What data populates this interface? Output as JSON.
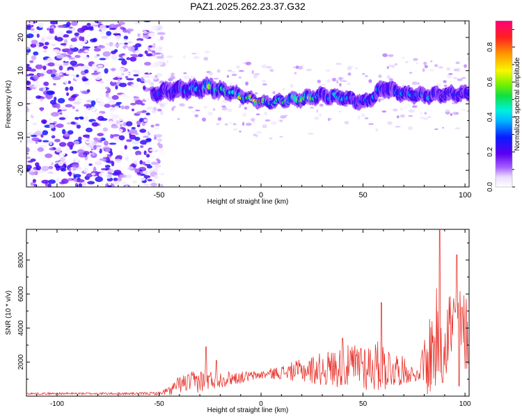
{
  "title": "PAZ1.2025.262.23.37.G32",
  "chart_data": [
    {
      "type": "heatmap",
      "xlabel": "Height of straight line (km)",
      "ylabel": "Frequency (Hz)",
      "xlim": [
        -115,
        102
      ],
      "ylim": [
        -25,
        25
      ],
      "xticks": [
        -100,
        -50,
        0,
        50,
        100
      ],
      "yticks": [
        -20,
        -10,
        0,
        10,
        20
      ],
      "colorbar": {
        "label": "Normalized spectral amplitude",
        "range": [
          0,
          0.95
        ],
        "ticks": [
          0.0,
          0.2,
          0.4,
          0.6,
          0.8
        ],
        "colormap": "rainbow (white-lavender → violet → blue → cyan → green → yellow → orange → red → magenta)"
      },
      "noise_region": {
        "x_range": [
          -115,
          -52
        ],
        "freq_range": [
          -25,
          25
        ],
        "amplitude": "low (0.0–0.15)"
      },
      "signal_ridge": {
        "x": [
          -53,
          -45,
          -35,
          -25,
          -15,
          -5,
          0,
          5,
          10,
          20,
          30,
          40,
          50,
          55,
          60,
          70,
          80,
          90,
          100
        ],
        "freq": [
          3,
          4,
          4.5,
          5,
          3.5,
          1.5,
          0.5,
          0.5,
          1,
          1.5,
          2.5,
          2,
          0.5,
          2,
          5,
          3,
          2.5,
          3,
          3
        ],
        "width_hz": [
          4,
          5,
          5,
          5,
          4,
          3,
          3,
          3,
          3,
          4,
          4,
          4,
          4,
          4,
          5,
          4,
          4,
          4,
          4
        ],
        "peak_amplitude": [
          0.3,
          0.3,
          0.4,
          0.6,
          0.5,
          0.8,
          0.9,
          0.5,
          0.5,
          0.8,
          0.4,
          0.4,
          0.3,
          0.4,
          0.3,
          0.4,
          0.4,
          0.3,
          0.3
        ]
      }
    },
    {
      "type": "line",
      "xlabel": "Height of straight line (km)",
      "ylabel": "SNR (10 * v/v)",
      "xlim": [
        -115,
        102
      ],
      "ylim": [
        0,
        9800
      ],
      "xticks": [
        -100,
        -50,
        0,
        50,
        100
      ],
      "yticks": [
        2000,
        4000,
        6000,
        8000
      ],
      "color": "#e8332c",
      "series": [
        {
          "baseline": {
            "x": [
              -115,
              -60,
              -50,
              -45,
              -40,
              -30,
              -20,
              -10,
              0,
              10,
              20,
              30,
              40,
              50,
              60,
              70,
              78,
              79,
              85,
              90,
              95,
              100,
              102
            ],
            "y": [
              150,
              150,
              160,
              300,
              700,
              900,
              1000,
              1100,
              1250,
              1400,
              1500,
              1600,
              1700,
              1800,
              1750,
              1500,
              1150,
              1600,
              3000,
              4000,
              4000,
              3800,
              3600
            ]
          },
          "amplitude": {
            "x": [
              -115,
              -60,
              -50,
              -45,
              -40,
              -30,
              -20,
              -10,
              0,
              10,
              20,
              30,
              40,
              50,
              60,
              70,
              78,
              79,
              85,
              90,
              95,
              100,
              102
            ],
            "y": [
              60,
              70,
              100,
              300,
              500,
              700,
              500,
              350,
              250,
              400,
              700,
              1000,
              1200,
              1500,
              1500,
              800,
              200,
              1800,
              3200,
              2900,
              2600,
              2400,
              2200
            ]
          },
          "peaks": [
            {
              "x": -27,
              "y": 2900
            },
            {
              "x": -22,
              "y": 2100
            },
            {
              "x": 40,
              "y": 3400
            },
            {
              "x": 49,
              "y": 2800
            },
            {
              "x": 59,
              "y": 5500
            },
            {
              "x": 87.5,
              "y": 9800
            },
            {
              "x": 96,
              "y": 8300
            },
            {
              "x": 89,
              "y": 800
            },
            {
              "x": 97,
              "y": 600
            }
          ]
        }
      ]
    }
  ]
}
